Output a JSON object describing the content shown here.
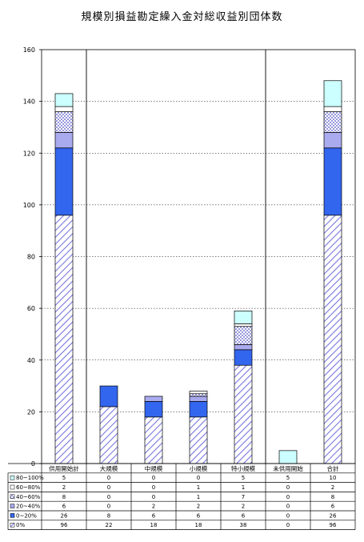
{
  "chart_data": {
    "type": "bar",
    "stacked": true,
    "title": "規模別損益勘定繰入金対総収益別団体数",
    "xlabel": "",
    "ylabel": "",
    "ylim": [
      0,
      160
    ],
    "yticks": [
      0,
      20,
      40,
      60,
      80,
      100,
      120,
      140,
      160
    ],
    "grid": true,
    "legend": "table-below",
    "categories": [
      "供用開始計",
      "大規模",
      "中規模",
      "小規模",
      "特小規模",
      "未供用開始",
      "合計"
    ],
    "series": [
      {
        "name": "0%",
        "values": [
          96,
          22,
          18,
          18,
          38,
          0,
          96
        ],
        "color": "#9999ee",
        "pattern": "hatch"
      },
      {
        "name": "0~20%",
        "values": [
          26,
          8,
          6,
          6,
          6,
          0,
          26
        ],
        "color": "#3366ee",
        "pattern": "solid"
      },
      {
        "name": "20~40%",
        "values": [
          6,
          0,
          2,
          2,
          2,
          0,
          6
        ],
        "color": "#aaaaee",
        "pattern": "solid"
      },
      {
        "name": "40~60%",
        "values": [
          8,
          0,
          0,
          1,
          7,
          0,
          8
        ],
        "color": "#bbbbee",
        "pattern": "check"
      },
      {
        "name": "60~80%",
        "values": [
          2,
          0,
          0,
          1,
          1,
          0,
          2
        ],
        "color": "#ffffff",
        "pattern": "solid"
      },
      {
        "name": "80~100%",
        "values": [
          5,
          0,
          0,
          0,
          5,
          5,
          10
        ],
        "color": "#ccffff",
        "pattern": "solid"
      }
    ],
    "table_rows_order": [
      "80~100%",
      "60~80%",
      "40~60%",
      "20~40%",
      "0~20%",
      "0%"
    ],
    "separator_after_categories": [
      0,
      4
    ]
  }
}
